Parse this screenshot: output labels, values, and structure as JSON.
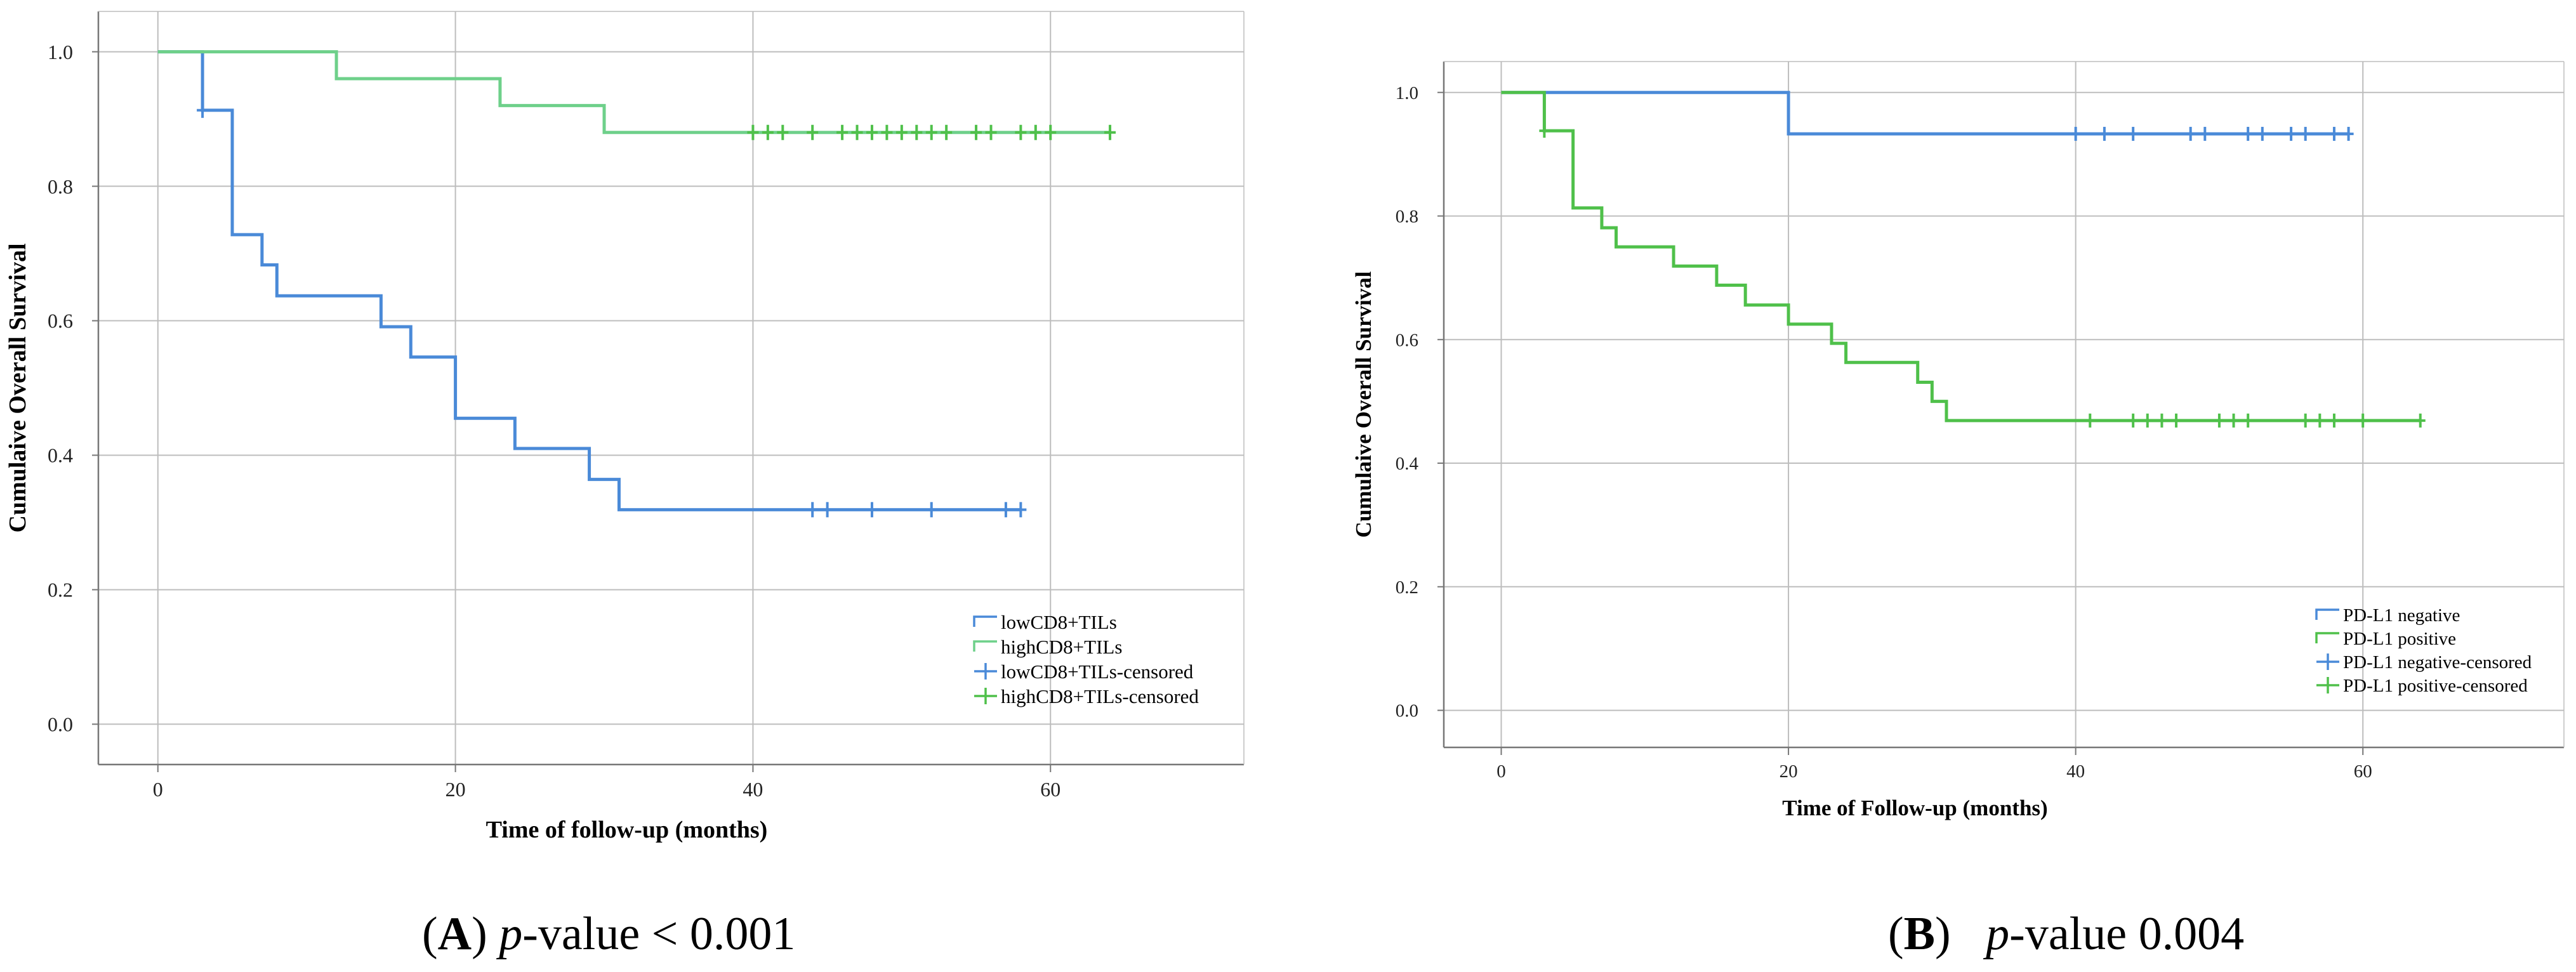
{
  "colors": {
    "blue": "#4a8ad8",
    "green": "#4fc04a",
    "green_light": "#6ed08a",
    "blue_light": "#8ab8ee",
    "grid": "#bdbdbd",
    "axis": "#777777"
  },
  "captions": [
    {
      "letter": "A",
      "p_label": "p",
      "p_rest": "-value < 0.001"
    },
    {
      "letter": "B",
      "p_label": "p",
      "p_rest": "-value 0.004"
    }
  ],
  "chart_data": [
    {
      "type": "line",
      "subtype": "kaplan-meier",
      "xlabel": "Time of follow-up (months)",
      "ylabel": "Cumulaive Overall Survival",
      "xlim": [
        -4,
        73
      ],
      "ylim": [
        -0.06,
        1.06
      ],
      "xticks": [
        0,
        20,
        40,
        60
      ],
      "xtick_labels": [
        "0",
        "20",
        "40",
        "60"
      ],
      "yticks": [
        0.0,
        0.2,
        0.4,
        0.6,
        0.8,
        1.0
      ],
      "ytick_labels": [
        "0.0",
        "0.2",
        "0.4",
        "0.6",
        "0.8",
        "1.0"
      ],
      "grid": true,
      "legend_position": "lower-right",
      "series": [
        {
          "name": "lowCD8+TILs",
          "color": "#4a8ad8",
          "steps": [
            [
              0,
              1.0
            ],
            [
              3,
              0.913
            ],
            [
              5,
              0.728
            ],
            [
              7,
              0.683
            ],
            [
              8,
              0.637
            ],
            [
              15,
              0.591
            ],
            [
              17,
              0.546
            ],
            [
              20,
              0.455
            ],
            [
              24,
              0.41
            ],
            [
              29,
              0.364
            ],
            [
              31,
              0.319
            ],
            [
              58,
              0.319
            ]
          ],
          "censored_name": "lowCD8+TILs-censored",
          "censored_color": "#4a8ad8",
          "censored": [
            3,
            44,
            45,
            48,
            52,
            57,
            58
          ]
        },
        {
          "name": "highCD8+TILs",
          "color": "#6ed08a",
          "steps": [
            [
              0,
              1.0
            ],
            [
              12,
              0.96
            ],
            [
              23,
              0.92
            ],
            [
              30,
              0.88
            ],
            [
              64,
              0.88
            ]
          ],
          "censored_name": "highCD8+TILs-censored",
          "censored_color": "#4fc04a",
          "censored": [
            40,
            41,
            42,
            44,
            46,
            47,
            48,
            49,
            50,
            51,
            52,
            53,
            55,
            56,
            58,
            59,
            60,
            64
          ]
        }
      ],
      "legend": [
        "lowCD8+TILs",
        "highCD8+TILs",
        "lowCD8+TILs-censored",
        "highCD8+TILs-censored"
      ]
    },
    {
      "type": "line",
      "subtype": "kaplan-meier",
      "xlabel": "Time of Follow-up (months)",
      "ylabel": "Cumulaive Overall Survival",
      "xlim": [
        -4,
        74
      ],
      "ylim": [
        -0.06,
        1.05
      ],
      "xticks": [
        0,
        20,
        40,
        60
      ],
      "xtick_labels": [
        "0",
        "20",
        "40",
        "60"
      ],
      "yticks": [
        0.0,
        0.2,
        0.4,
        0.6,
        0.8,
        1.0
      ],
      "ytick_labels": [
        "0.0",
        "0.2",
        "0.4",
        "0.6",
        "0.8",
        "1.0"
      ],
      "grid": true,
      "legend_position": "lower-right",
      "series": [
        {
          "name": "PD-L1 negative",
          "color": "#4a8ad8",
          "steps": [
            [
              0,
              1.0
            ],
            [
              20,
              0.933
            ],
            [
              59,
              0.933
            ]
          ],
          "censored_name": "PD-L1 negative-censored",
          "censored_color": "#4a8ad8",
          "censored": [
            40,
            42,
            44,
            48,
            49,
            52,
            53,
            55,
            56,
            58,
            59
          ]
        },
        {
          "name": "PD-L1 positive",
          "color": "#4fc04a",
          "steps": [
            [
              0,
              1.0
            ],
            [
              3,
              0.938
            ],
            [
              5,
              0.813
            ],
            [
              7,
              0.781
            ],
            [
              8,
              0.75
            ],
            [
              12,
              0.719
            ],
            [
              15,
              0.688
            ],
            [
              17,
              0.656
            ],
            [
              20,
              0.625
            ],
            [
              23,
              0.594
            ],
            [
              24,
              0.563
            ],
            [
              29,
              0.531
            ],
            [
              30,
              0.5
            ],
            [
              31,
              0.469
            ],
            [
              64,
              0.469
            ]
          ],
          "censored_name": "PD-L1 positive-censored",
          "censored_color": "#4fc04a",
          "censored": [
            3,
            41,
            44,
            45,
            46,
            47,
            50,
            51,
            52,
            56,
            57,
            58,
            60,
            64
          ]
        }
      ],
      "legend": [
        "PD-L1 negative",
        "PD-L1 positive",
        "PD-L1 negative-censored",
        "PD-L1 positive-censored"
      ]
    }
  ]
}
